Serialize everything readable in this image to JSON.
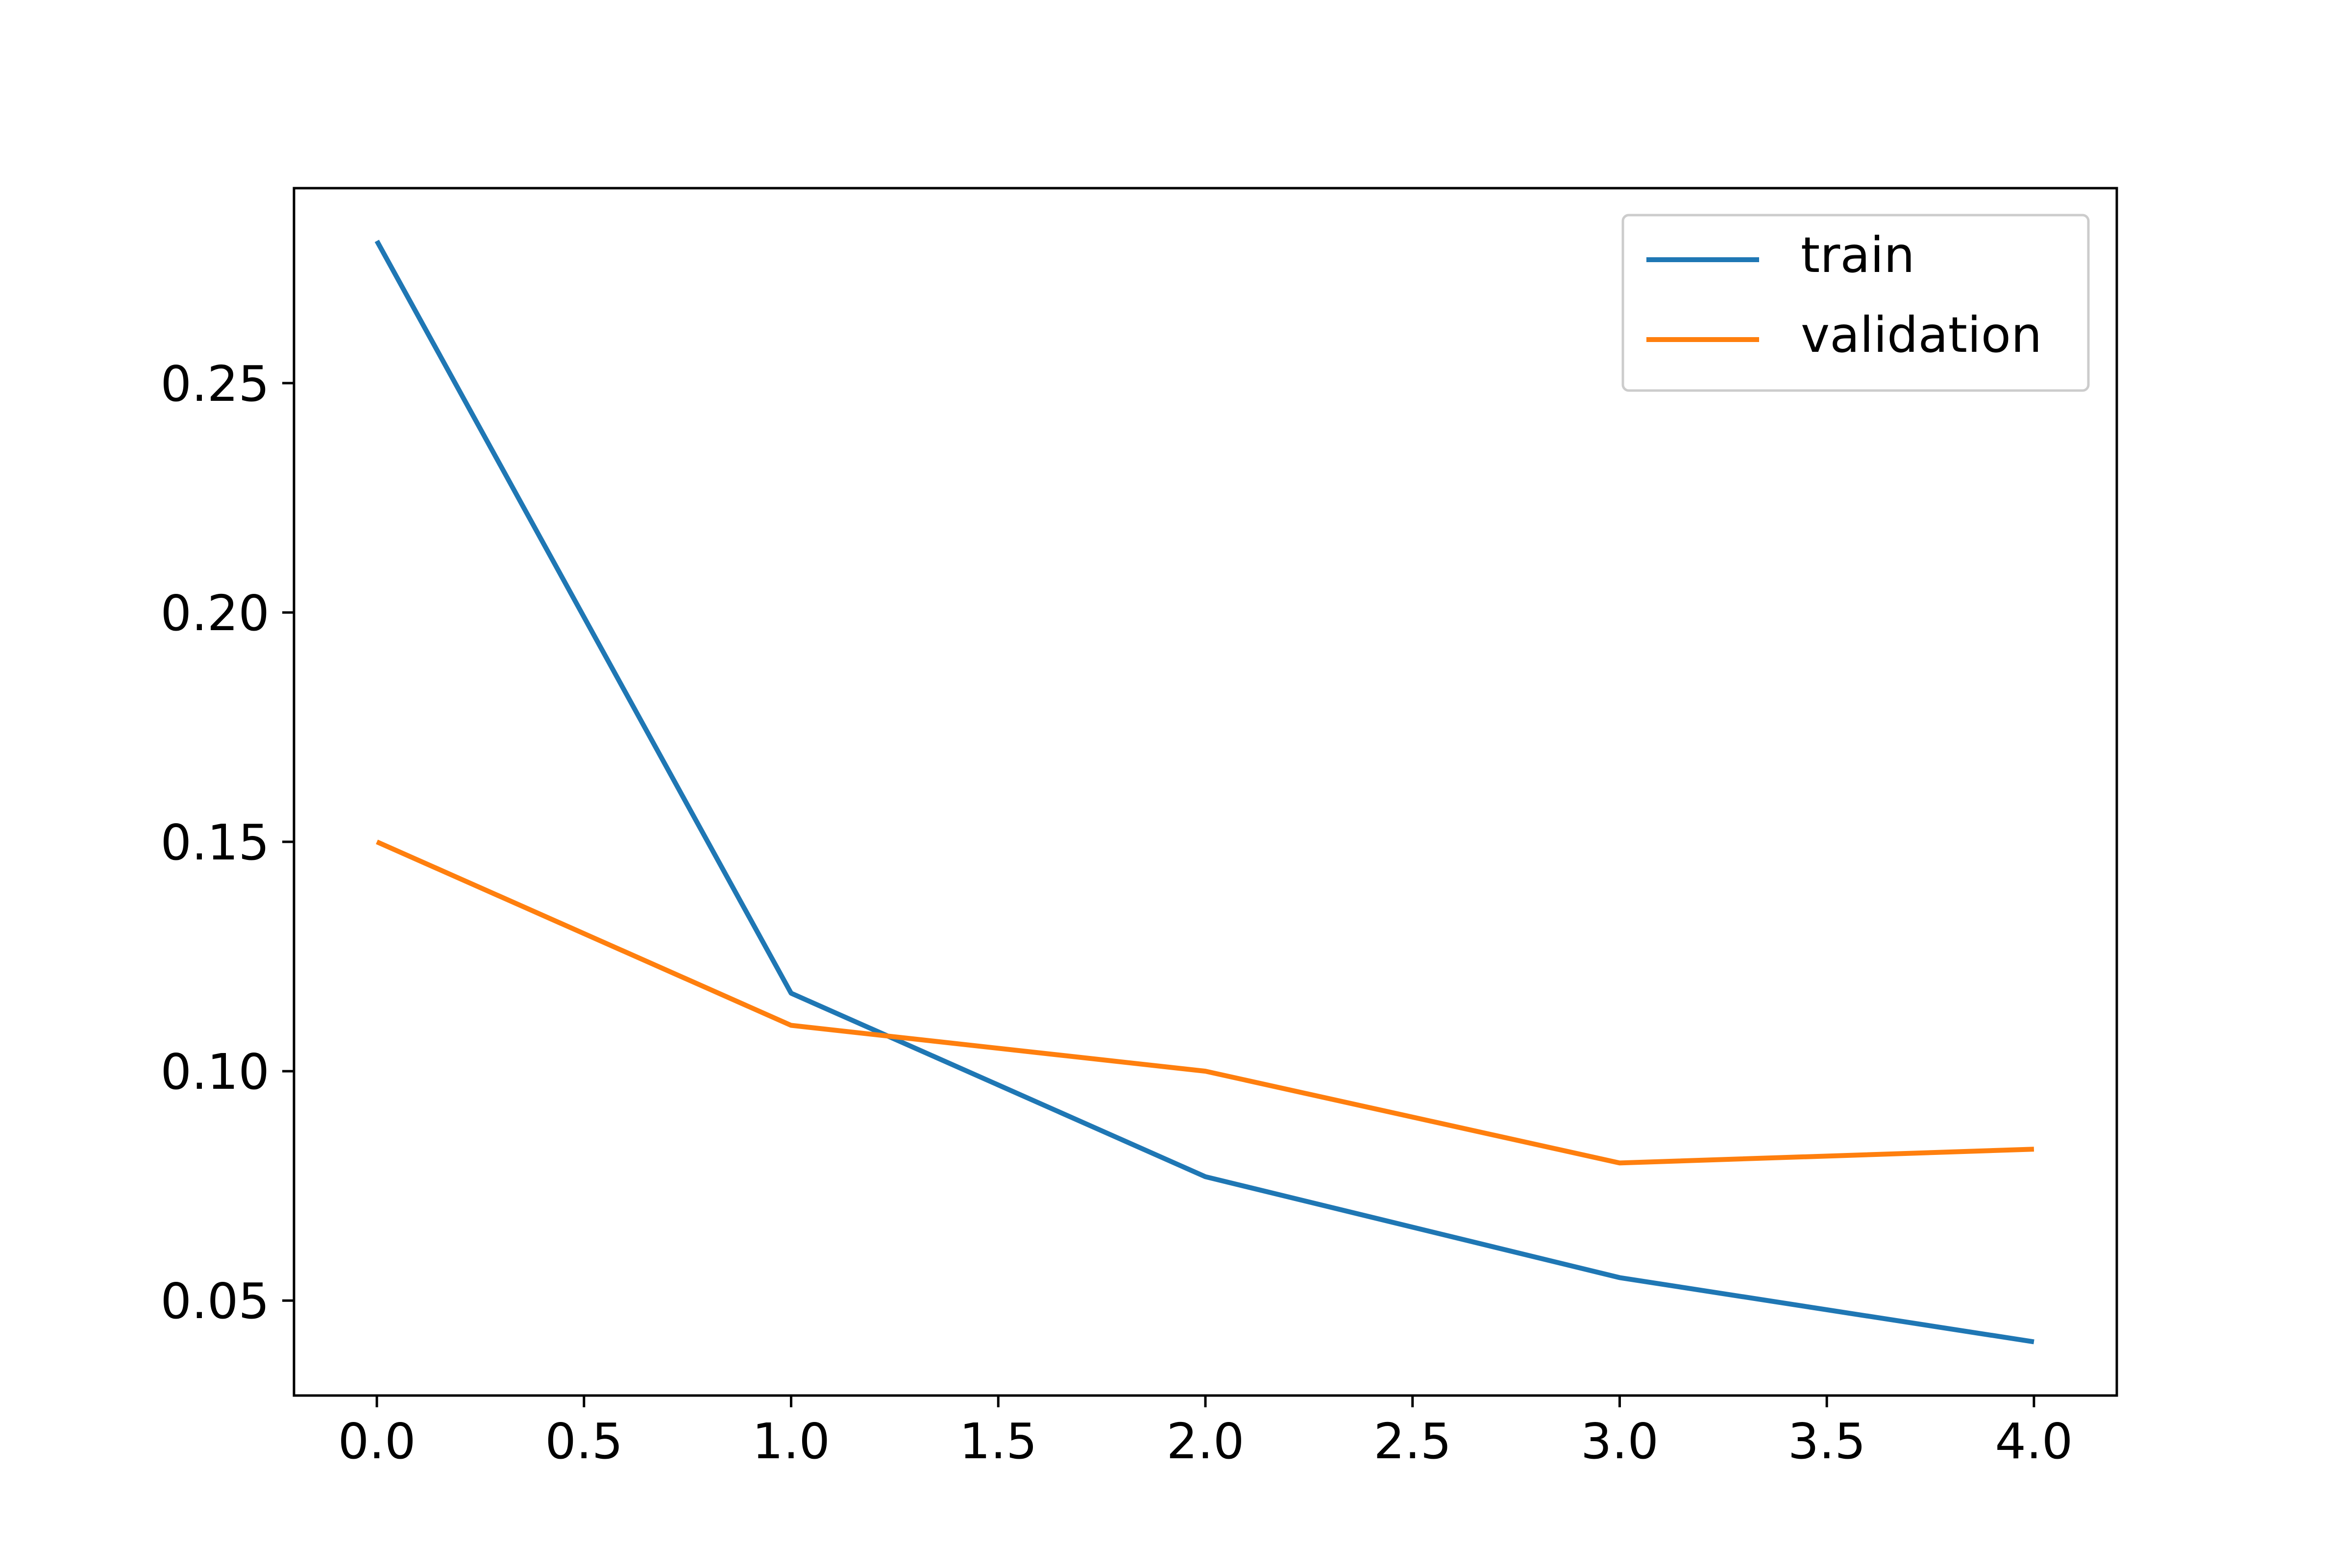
{
  "chart_data": {
    "type": "line",
    "title": "",
    "xlabel": "",
    "ylabel": "",
    "xlim": [
      -0.2,
      4.2
    ],
    "ylim": [
      0.0293,
      0.2925
    ],
    "x": [
      0,
      1,
      2,
      3,
      4
    ],
    "xticks": [
      0.0,
      0.5,
      1.0,
      1.5,
      2.0,
      2.5,
      3.0,
      3.5,
      4.0
    ],
    "xtick_labels": [
      "0.0",
      "0.5",
      "1.0",
      "1.5",
      "2.0",
      "2.5",
      "3.0",
      "3.5",
      "4.0"
    ],
    "yticks": [
      0.05,
      0.1,
      0.15,
      0.2,
      0.25
    ],
    "ytick_labels": [
      "0.05",
      "0.10",
      "0.15",
      "0.20",
      "0.25"
    ],
    "grid": false,
    "legend_position": "top-right",
    "series": [
      {
        "name": "train",
        "color": "#1f77b4",
        "values": [
          0.281,
          0.117,
          0.077,
          0.055,
          0.041
        ]
      },
      {
        "name": "validation",
        "color": "#ff7f0e",
        "values": [
          0.15,
          0.11,
          0.1,
          0.08,
          0.083
        ]
      }
    ]
  }
}
